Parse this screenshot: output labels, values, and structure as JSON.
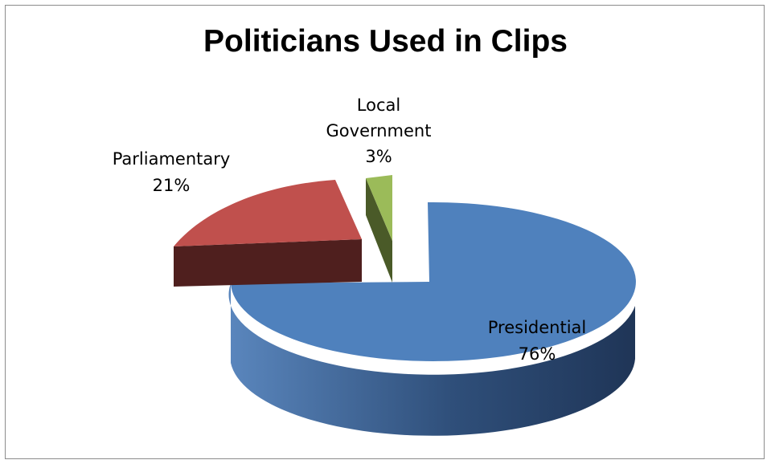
{
  "chart_data": {
    "type": "pie",
    "title": "Politicians Used in Clips",
    "slices": [
      {
        "label": "Presidential",
        "percent_label": "76%",
        "value": 76,
        "color": "#4f81bd",
        "side_color": "#3a5f8f",
        "exploded": true
      },
      {
        "label": "Parliamentary",
        "percent_label": "21%",
        "value": 21,
        "color": "#c0504d",
        "side_color": "#4f1f1e",
        "exploded": true
      },
      {
        "label": "Local Government",
        "percent_label": "3%",
        "value": 3,
        "color": "#9bbb59",
        "side_color": "#4a5a28",
        "exploded": true
      }
    ],
    "legend": "none",
    "style": "3d-exploded"
  }
}
